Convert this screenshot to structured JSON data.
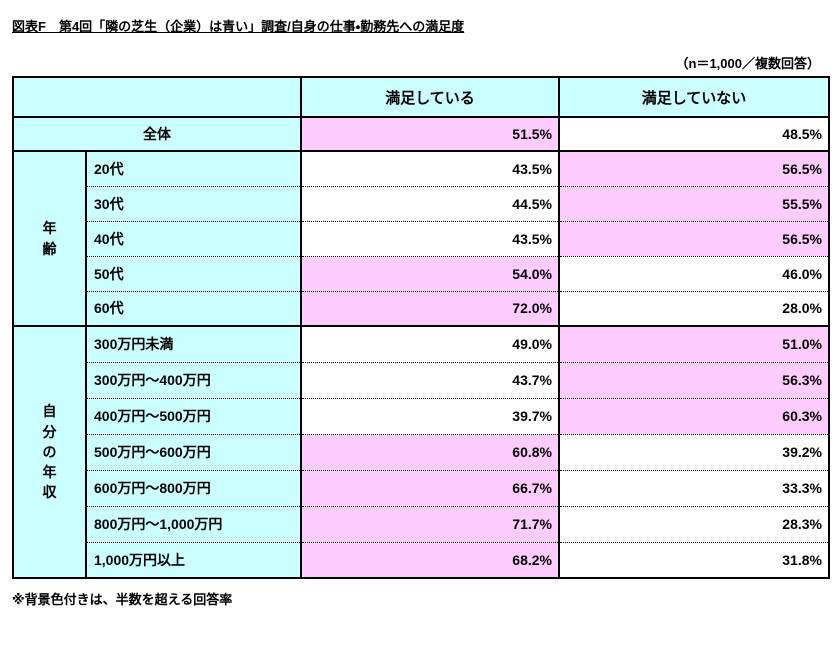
{
  "page": {
    "title": "図表F　第4回「隣の芝生（企業）は青い」調査/自身の仕事・勤務先への満足度",
    "sample_note": "（n＝1,000／複数回答）",
    "footnote": "※背景色付きは、半数を超える回答率"
  },
  "colors": {
    "header_bg": "#CCFFFF",
    "highlight_bg": "#FFCCFF",
    "border": "#000000",
    "page_bg": "#FFFFFF"
  },
  "table": {
    "columns": [
      "満足している",
      "満足していない"
    ],
    "overall": {
      "label": "全体",
      "values": [
        "51.5%",
        "48.5%"
      ]
    },
    "groups": [
      {
        "label": "年齢",
        "rows": [
          {
            "label": "20代",
            "values": [
              "43.5%",
              "56.5%"
            ]
          },
          {
            "label": "30代",
            "values": [
              "44.5%",
              "55.5%"
            ]
          },
          {
            "label": "40代",
            "values": [
              "43.5%",
              "56.5%"
            ]
          },
          {
            "label": "50代",
            "values": [
              "54.0%",
              "46.0%"
            ]
          },
          {
            "label": "60代",
            "values": [
              "72.0%",
              "28.0%"
            ]
          }
        ]
      },
      {
        "label": "自分の年収",
        "rows": [
          {
            "label": "300万円未満",
            "values": [
              "49.0%",
              "51.0%"
            ]
          },
          {
            "label": "300万円～400万円",
            "values": [
              "43.7%",
              "56.3%"
            ]
          },
          {
            "label": "400万円～500万円",
            "values": [
              "39.7%",
              "60.3%"
            ]
          },
          {
            "label": "500万円～600万円",
            "values": [
              "60.8%",
              "39.2%"
            ]
          },
          {
            "label": "600万円～800万円",
            "values": [
              "66.7%",
              "33.3%"
            ]
          },
          {
            "label": "800万円～1,000万円",
            "values": [
              "71.7%",
              "28.3%"
            ]
          },
          {
            "label": "1,000万円以上",
            "values": [
              "68.2%",
              "31.8%"
            ]
          }
        ]
      }
    ]
  }
}
